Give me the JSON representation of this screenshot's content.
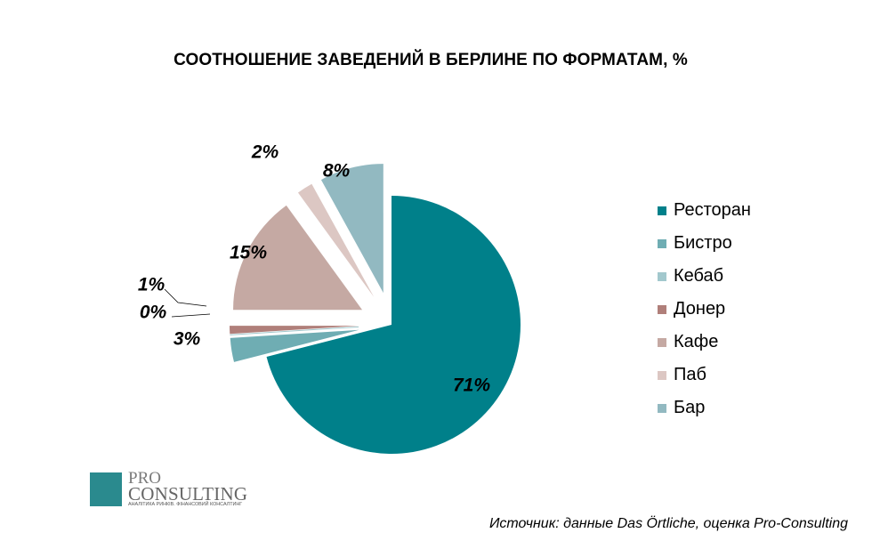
{
  "chart_data": {
    "type": "pie",
    "title": "СООТНОШЕНИЕ ЗАВЕДЕНИЙ В БЕРЛИНЕ ПО ФОРМАТАМ, %",
    "categories": [
      "Ресторан",
      "Бистро",
      "Кебаб",
      "Донер",
      "Кафе",
      "Паб",
      "Бар"
    ],
    "values": [
      71,
      3,
      0,
      1,
      15,
      2,
      8
    ],
    "value_labels": [
      "71%",
      "3%",
      "0%",
      "1%",
      "15%",
      "2%",
      "8%"
    ],
    "colors": [
      "#00808a",
      "#6fadb3",
      "#a2c8cd",
      "#b07f7a",
      "#c5a9a3",
      "#dcc7c3",
      "#92b9c1"
    ],
    "exploded": true,
    "legend": {
      "position": "right"
    }
  },
  "source_note": "Источник: данные Das Örtliche, оценка Pro-Consulting",
  "logo": {
    "line1": "PRO",
    "line2": "CONSULTING",
    "tagline": "АНАЛІТИКА РИНКІВ. ФІНАНСОВИЙ КОНСАЛТИНГ",
    "color": "#2a8a8e"
  }
}
